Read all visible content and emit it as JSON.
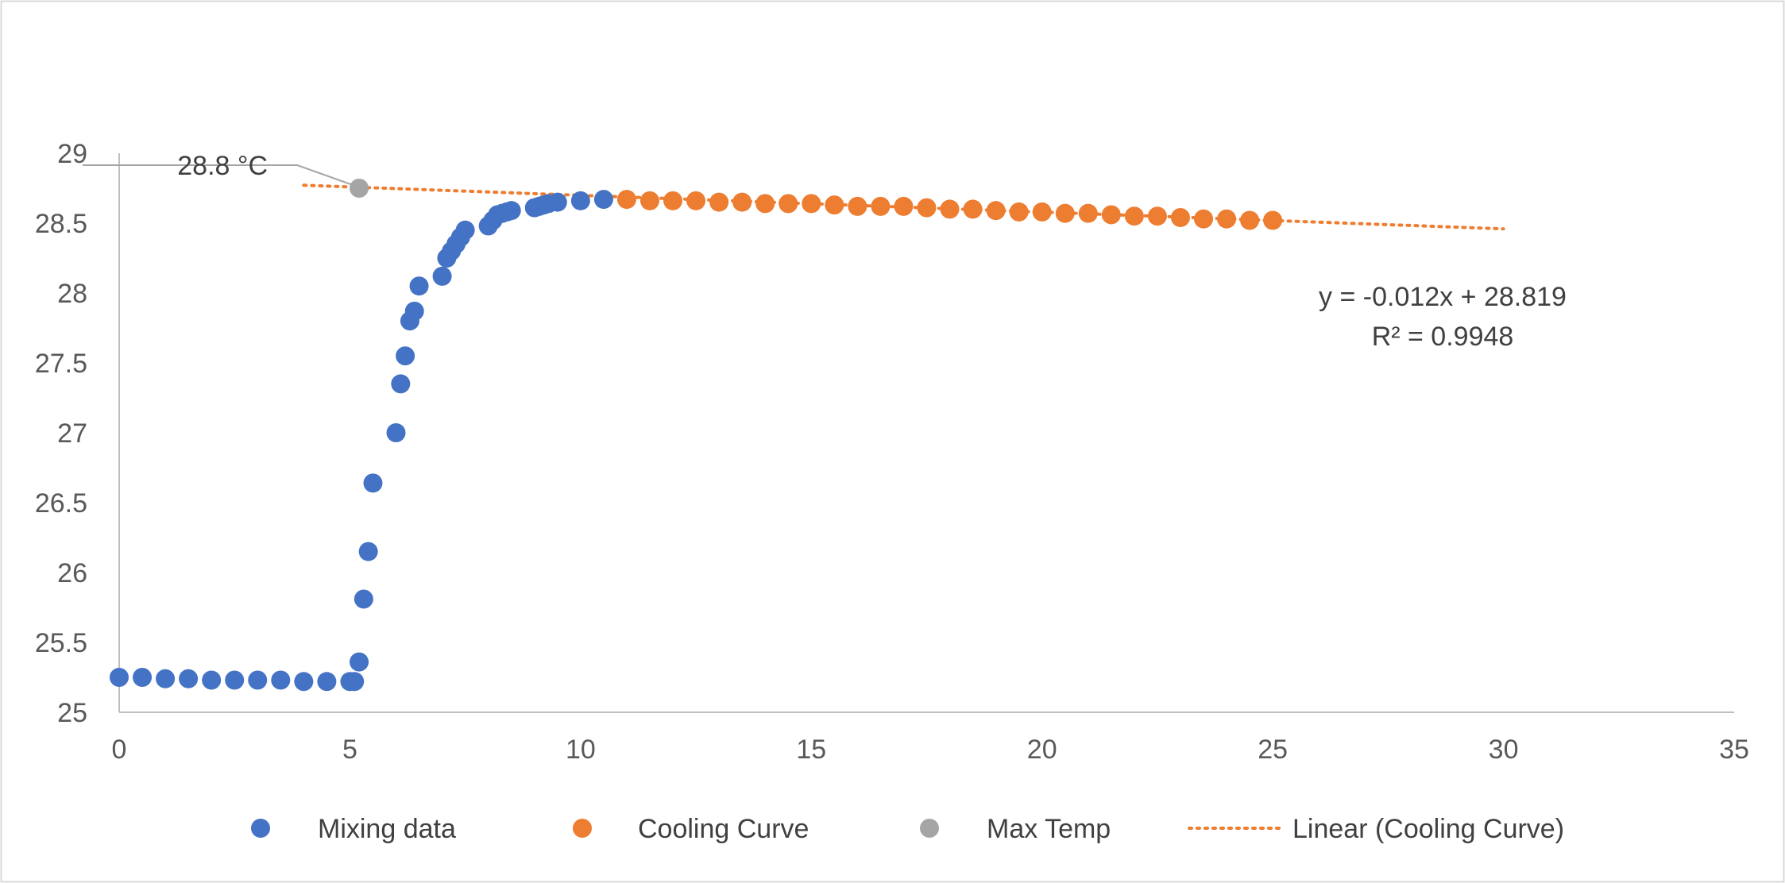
{
  "chart_data": {
    "type": "scatter",
    "title": "",
    "xlabel": "",
    "ylabel": "",
    "xlim": [
      0,
      35
    ],
    "ylim": [
      25,
      29
    ],
    "x_ticks": [
      "0",
      "5",
      "10",
      "15",
      "20",
      "25",
      "30",
      "35"
    ],
    "y_ticks": [
      "25",
      "25.5",
      "26",
      "26.5",
      "27",
      "27.5",
      "28",
      "28.5",
      "29"
    ],
    "grid": false,
    "legend_position": "bottom",
    "series": [
      {
        "name": "Mixing data",
        "color": "#4472C4",
        "points": [
          [
            0,
            25.25
          ],
          [
            0.5,
            25.25
          ],
          [
            1,
            25.24
          ],
          [
            1.5,
            25.24
          ],
          [
            2,
            25.23
          ],
          [
            2.5,
            25.23
          ],
          [
            3,
            25.23
          ],
          [
            3.5,
            25.23
          ],
          [
            4,
            25.22
          ],
          [
            4.5,
            25.22
          ],
          [
            5,
            25.22
          ],
          [
            5.1,
            25.22
          ],
          [
            5.2,
            25.36
          ],
          [
            5.3,
            25.81
          ],
          [
            5.4,
            26.15
          ],
          [
            5.5,
            26.64
          ],
          [
            6,
            27.0
          ],
          [
            6.1,
            27.35
          ],
          [
            6.2,
            27.55
          ],
          [
            6.3,
            27.8
          ],
          [
            6.4,
            27.87
          ],
          [
            6.5,
            28.05
          ],
          [
            7,
            28.12
          ],
          [
            7.1,
            28.25
          ],
          [
            7.2,
            28.3
          ],
          [
            7.3,
            28.35
          ],
          [
            7.4,
            28.4
          ],
          [
            7.5,
            28.45
          ],
          [
            8,
            28.48
          ],
          [
            8.1,
            28.52
          ],
          [
            8.2,
            28.56
          ],
          [
            8.3,
            28.57
          ],
          [
            8.4,
            28.58
          ],
          [
            8.5,
            28.59
          ],
          [
            9,
            28.61
          ],
          [
            9.1,
            28.62
          ],
          [
            9.2,
            28.63
          ],
          [
            9.3,
            28.64
          ],
          [
            9.5,
            28.65
          ],
          [
            10,
            28.66
          ],
          [
            10.5,
            28.67
          ]
        ]
      },
      {
        "name": "Cooling Curve",
        "color": "#ED7D31",
        "points": [
          [
            11,
            28.67
          ],
          [
            11.5,
            28.66
          ],
          [
            12,
            28.66
          ],
          [
            12.5,
            28.66
          ],
          [
            13,
            28.65
          ],
          [
            13.5,
            28.65
          ],
          [
            14,
            28.64
          ],
          [
            14.5,
            28.64
          ],
          [
            15,
            28.64
          ],
          [
            15.5,
            28.63
          ],
          [
            16,
            28.62
          ],
          [
            16.5,
            28.62
          ],
          [
            17,
            28.62
          ],
          [
            17.5,
            28.61
          ],
          [
            18,
            28.6
          ],
          [
            18.5,
            28.6
          ],
          [
            19,
            28.59
          ],
          [
            19.5,
            28.58
          ],
          [
            20,
            28.58
          ],
          [
            20.5,
            28.57
          ],
          [
            21,
            28.57
          ],
          [
            21.5,
            28.56
          ],
          [
            22,
            28.55
          ],
          [
            22.5,
            28.55
          ],
          [
            23,
            28.54
          ],
          [
            23.5,
            28.53
          ],
          [
            24,
            28.53
          ],
          [
            24.5,
            28.52
          ],
          [
            25,
            28.52
          ]
        ]
      },
      {
        "name": "Max Temp",
        "color": "#A5A5A5",
        "points": [
          [
            5.2,
            28.75
          ]
        ]
      }
    ],
    "trendline": {
      "name": "Linear (Cooling Curve)",
      "color": "#ED7D31",
      "slope": -0.012,
      "intercept": 28.819,
      "x_range": [
        4,
        30
      ],
      "equation_label": "y = -0.012x + 28.819",
      "r2_label": "R² = 0.9948"
    },
    "annotations": [
      {
        "text": "28.8 °C",
        "target_x": 5.2,
        "target_y": 28.75
      }
    ]
  }
}
